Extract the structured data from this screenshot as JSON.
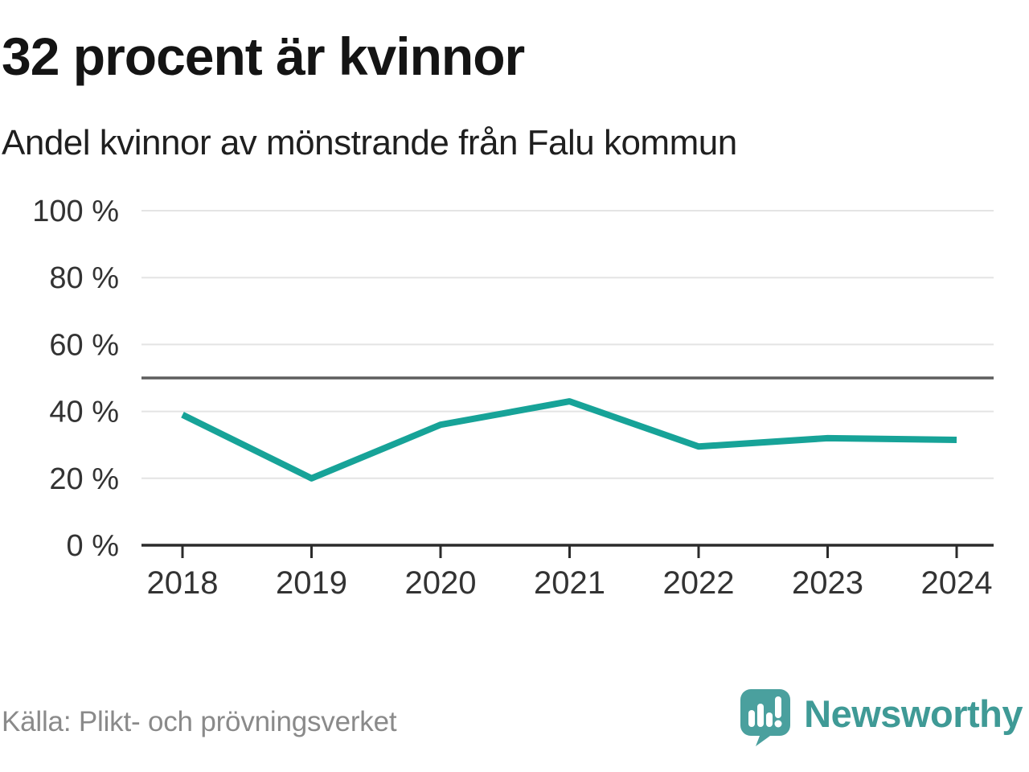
{
  "header": {
    "title": "32 procent är kvinnor",
    "subtitle": "Andel kvinnor av mönstrande från Falu kommun"
  },
  "chart_data": {
    "type": "line",
    "title": "32 procent är kvinnor",
    "subtitle": "Andel kvinnor av mönstrande från Falu kommun",
    "x": [
      "2018",
      "2019",
      "2020",
      "2021",
      "2022",
      "2023",
      "2024"
    ],
    "series": [
      {
        "name": "Andel kvinnor av mönstrande (%)",
        "values": [
          39,
          20,
          36,
          43,
          29.5,
          32,
          31.5
        ]
      }
    ],
    "ylim": [
      0,
      100
    ],
    "yticks": [
      0,
      20,
      40,
      60,
      80,
      100
    ],
    "ytick_labels": [
      "0 %",
      "20 %",
      "40 %",
      "60 %",
      "80 %",
      "100 %"
    ],
    "reference_line": {
      "value": 50
    },
    "grid": true,
    "legend": "none",
    "colors": {
      "line": "#17a398",
      "grid": "#e4e4e4",
      "reference_line": "#5e5e5e",
      "axis": "#2b2b2b",
      "tick_text": "#333333"
    }
  },
  "footer": {
    "source": "Källa: Plikt- och prövningsverket",
    "brand_name": "Newsworthy",
    "brand_icon": "speech-bubble-bar-chart-icon",
    "brand_color": "#3f9a96",
    "brand_icon_color": "#4aa09e"
  }
}
